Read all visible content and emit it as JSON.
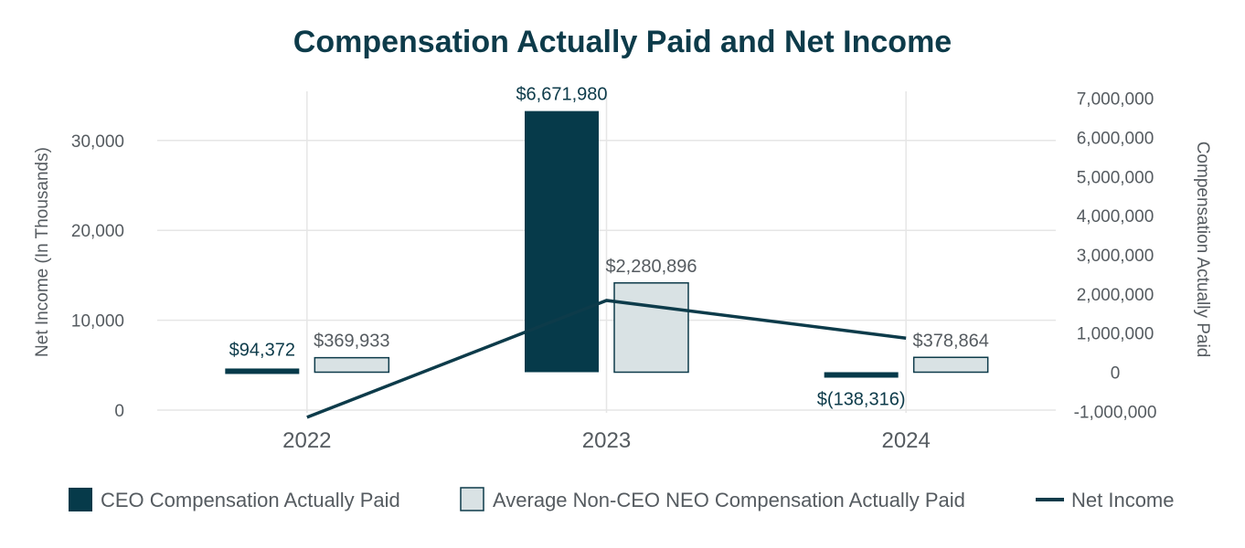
{
  "chart_data": {
    "type": "bar",
    "title": "Compensation Actually Paid and Net Income",
    "categories": [
      "2022",
      "2023",
      "2024"
    ],
    "series": [
      {
        "name": "CEO Compensation Actually Paid",
        "axis": "right",
        "kind": "bar",
        "values": [
          94372,
          6671980,
          -138316
        ],
        "labels": [
          "$94,372",
          "$6,671,980",
          "$(138,316)"
        ],
        "color": "#063a4a"
      },
      {
        "name": "Average Non-CEO NEO Compensation Actually Paid",
        "axis": "right",
        "kind": "bar",
        "values": [
          369933,
          2280896,
          378864
        ],
        "labels": [
          "$369,933",
          "$2,280,896",
          "$378,864"
        ],
        "color": "#d9e2e4",
        "border": "#0d3b4a"
      },
      {
        "name": "Net Income",
        "axis": "left",
        "kind": "line",
        "values": [
          -800,
          12200,
          8000
        ],
        "color": "#0d3b4a"
      }
    ],
    "y_left": {
      "label": "Net Income (In Thousands)",
      "ticks": [
        0,
        10000,
        20000,
        30000
      ],
      "tick_labels": [
        "0",
        "10,000",
        "20,000",
        "30,000"
      ]
    },
    "y_right": {
      "label": "Compensation Actually Paid",
      "ticks": [
        -1000000,
        0,
        1000000,
        2000000,
        3000000,
        4000000,
        5000000,
        6000000,
        7000000
      ],
      "tick_labels": [
        "-1,000,000",
        "0",
        "1,000,000",
        "2,000,000",
        "3,000,000",
        "4,000,000",
        "5,000,000",
        "6,000,000",
        "7,000,000"
      ]
    },
    "legend": {
      "position": "bottom"
    },
    "grid": true
  }
}
